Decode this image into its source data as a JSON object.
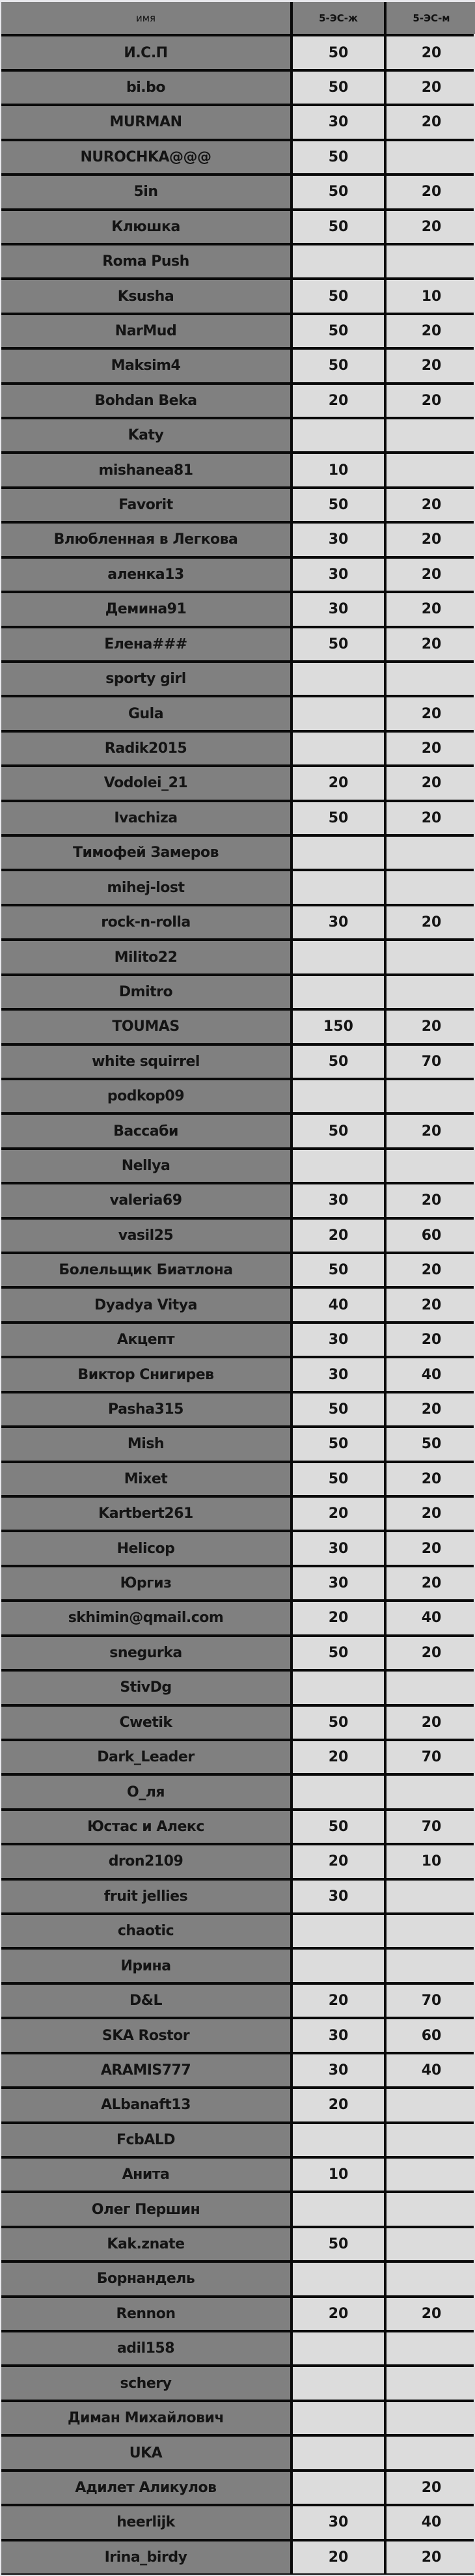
{
  "header": {
    "name": "имя",
    "col1": "5-ЭС-ж",
    "col2": "5-ЭС-м"
  },
  "colors": {
    "name_bg": "#808080",
    "value_bg": "#dcdcdc",
    "border": "#0a0a0a"
  },
  "rows": [
    {
      "name": "И.С.П",
      "a": "50",
      "b": "20"
    },
    {
      "name": "bi.bo",
      "a": "50",
      "b": "20"
    },
    {
      "name": "MURMAN",
      "a": "30",
      "b": "20"
    },
    {
      "name": "NUROCHKA@@@",
      "a": "50",
      "b": ""
    },
    {
      "name": "5in",
      "a": "50",
      "b": "20"
    },
    {
      "name": "Клюшка",
      "a": "50",
      "b": "20"
    },
    {
      "name": "Roma Push",
      "a": "",
      "b": ""
    },
    {
      "name": "Ksusha",
      "a": "50",
      "b": "10"
    },
    {
      "name": "NarMud",
      "a": "50",
      "b": "20"
    },
    {
      "name": "Maksim4",
      "a": "50",
      "b": "20"
    },
    {
      "name": "Bohdan Beka",
      "a": "20",
      "b": "20"
    },
    {
      "name": "Katy",
      "a": "",
      "b": ""
    },
    {
      "name": "mishanea81",
      "a": "10",
      "b": ""
    },
    {
      "name": "Favorit",
      "a": "50",
      "b": "20"
    },
    {
      "name": "Влюбленная в Легкова",
      "a": "30",
      "b": "20"
    },
    {
      "name": "аленка13",
      "a": "30",
      "b": "20"
    },
    {
      "name": "Демина91",
      "a": "30",
      "b": "20"
    },
    {
      "name": "Елена###",
      "a": "50",
      "b": "20"
    },
    {
      "name": "sporty girl",
      "a": "",
      "b": ""
    },
    {
      "name": "Gula",
      "a": "",
      "b": "20"
    },
    {
      "name": "Radik2015",
      "a": "",
      "b": "20"
    },
    {
      "name": "Vodolei_21",
      "a": "20",
      "b": "20"
    },
    {
      "name": "Ivachiza",
      "a": "50",
      "b": "20"
    },
    {
      "name": "Тимофей Замеров",
      "a": "",
      "b": ""
    },
    {
      "name": "mihej-lost",
      "a": "",
      "b": ""
    },
    {
      "name": "rock-n-rolla",
      "a": "30",
      "b": "20"
    },
    {
      "name": "Milito22",
      "a": "",
      "b": ""
    },
    {
      "name": "Dmitro",
      "a": "",
      "b": ""
    },
    {
      "name": "TOUMAS",
      "a": "150",
      "b": "20"
    },
    {
      "name": "white squirrel",
      "a": "50",
      "b": "70"
    },
    {
      "name": "podkop09",
      "a": "",
      "b": ""
    },
    {
      "name": "Вассаби",
      "a": "50",
      "b": "20"
    },
    {
      "name": "Nellya",
      "a": "",
      "b": ""
    },
    {
      "name": "valeria69",
      "a": "30",
      "b": "20"
    },
    {
      "name": "vasil25",
      "a": "20",
      "b": "60"
    },
    {
      "name": "Болельщик Биатлона",
      "a": "50",
      "b": "20"
    },
    {
      "name": "Dyadya Vitya",
      "a": "40",
      "b": "20"
    },
    {
      "name": "Акцепт",
      "a": "30",
      "b": "20"
    },
    {
      "name": "Виктор Снигирев",
      "a": "30",
      "b": "40"
    },
    {
      "name": "Pasha315",
      "a": "50",
      "b": "20"
    },
    {
      "name": "Mish",
      "a": "50",
      "b": "50"
    },
    {
      "name": "Mixet",
      "a": "50",
      "b": "20"
    },
    {
      "name": "Kartbert261",
      "a": "20",
      "b": "20"
    },
    {
      "name": "Helicop",
      "a": "30",
      "b": "20"
    },
    {
      "name": "Юргиз",
      "a": "30",
      "b": "20"
    },
    {
      "name": "skhimin@qmail.com",
      "a": "20",
      "b": "40"
    },
    {
      "name": "snegurka",
      "a": "50",
      "b": "20"
    },
    {
      "name": "StivDg",
      "a": "",
      "b": ""
    },
    {
      "name": "Cwetik",
      "a": "50",
      "b": "20"
    },
    {
      "name": "Dark_Leader",
      "a": "20",
      "b": "70"
    },
    {
      "name": "О_ля",
      "a": "",
      "b": ""
    },
    {
      "name": "Юстас и Алекс",
      "a": "50",
      "b": "70"
    },
    {
      "name": "dron2109",
      "a": "20",
      "b": "10"
    },
    {
      "name": "fruit jellies",
      "a": "30",
      "b": ""
    },
    {
      "name": "chaotic",
      "a": "",
      "b": ""
    },
    {
      "name": "Ирина",
      "a": "",
      "b": ""
    },
    {
      "name": "D&L",
      "a": "20",
      "b": "70"
    },
    {
      "name": "SKA Rostor",
      "a": "30",
      "b": "60"
    },
    {
      "name": "ARAMIS777",
      "a": "30",
      "b": "40"
    },
    {
      "name": "ALbanaft13",
      "a": "20",
      "b": ""
    },
    {
      "name": "FcbALD",
      "a": "",
      "b": ""
    },
    {
      "name": "Анита",
      "a": "10",
      "b": ""
    },
    {
      "name": "Олег Першин",
      "a": "",
      "b": ""
    },
    {
      "name": "Kak.znate",
      "a": "50",
      "b": ""
    },
    {
      "name": "Борнандель",
      "a": "",
      "b": ""
    },
    {
      "name": "Rennon",
      "a": "20",
      "b": "20"
    },
    {
      "name": "adil158",
      "a": "",
      "b": ""
    },
    {
      "name": "schery",
      "a": "",
      "b": ""
    },
    {
      "name": "Диман Михайлович",
      "a": "",
      "b": ""
    },
    {
      "name": "UKA",
      "a": "",
      "b": ""
    },
    {
      "name": "Адилет Аликулов",
      "a": "",
      "b": "20"
    },
    {
      "name": "heerlijk",
      "a": "30",
      "b": "40"
    },
    {
      "name": "Irina_birdy",
      "a": "20",
      "b": "20"
    }
  ]
}
